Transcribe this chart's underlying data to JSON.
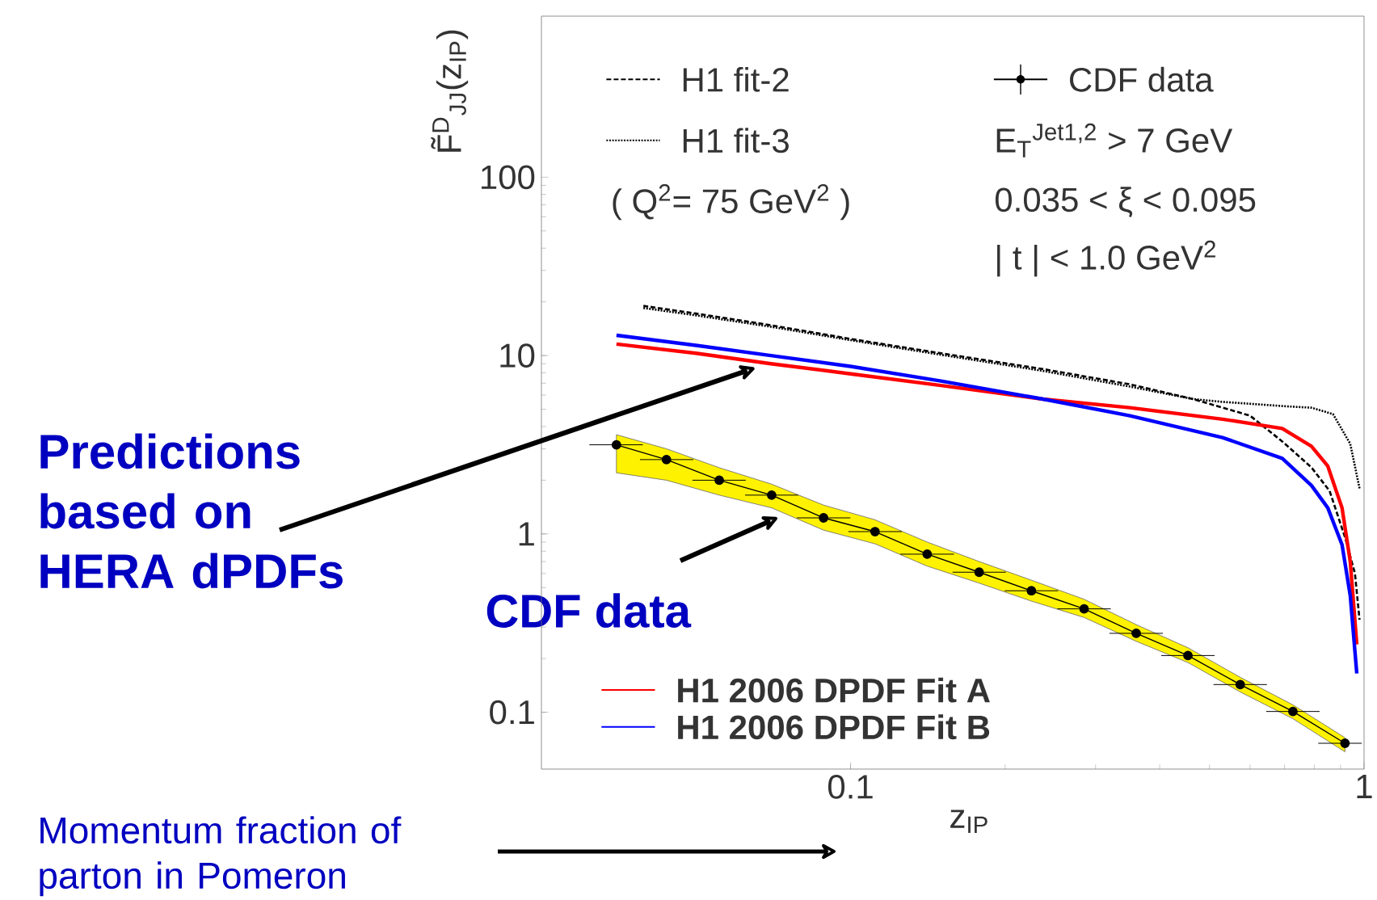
{
  "chart_data": {
    "type": "line",
    "log": "xy",
    "xlabel": "z$_{IP}$",
    "ylabel": "F̃$^{D}$$_{JJ}$(z$_{IP}$)",
    "xlim": [
      0.025,
      1
    ],
    "ylim": [
      0.048,
      800
    ],
    "xticks": [
      0.1,
      1
    ],
    "yticks": [
      0.1,
      1,
      10,
      100
    ],
    "legend": "left",
    "series": [
      {
        "name": "H1 fit-2",
        "color": "#000000",
        "line_style": "dashed",
        "x": [
          0.0395,
          0.05,
          0.07,
          0.1,
          0.15,
          0.237,
          0.35,
          0.465,
          0.6,
          0.693,
          0.79,
          0.857,
          0.92,
          0.96,
          0.98
        ],
        "values": [
          19,
          17.2,
          14.8,
          12.4,
          10.3,
          8.4,
          6.9,
          5.7,
          4.6,
          3.3,
          2.36,
          1.74,
          0.94,
          0.6,
          0.33
        ]
      },
      {
        "name": "H1 fit-3",
        "color": "#000000",
        "line_style": "dotted",
        "x": [
          0.0395,
          0.05,
          0.07,
          0.1,
          0.15,
          0.237,
          0.35,
          0.465,
          0.53,
          0.7,
          0.79,
          0.87,
          0.94,
          0.98
        ],
        "values": [
          18.5,
          16.8,
          14.5,
          12.2,
          10.1,
          8.2,
          6.7,
          5.7,
          5.5,
          5.2,
          5.1,
          4.7,
          3.2,
          1.8
        ]
      },
      {
        "name": "CDF data",
        "color": "#000000",
        "marker": "circle",
        "x": [
          0.035,
          0.0438,
          0.0555,
          0.0702,
          0.0886,
          0.1116,
          0.141,
          0.178,
          0.225,
          0.285,
          0.36,
          0.454,
          0.574,
          0.727,
          0.918
        ],
        "values": [
          3.16,
          2.61,
          2.0,
          1.65,
          1.23,
          1.03,
          0.77,
          0.61,
          0.48,
          0.38,
          0.277,
          0.208,
          0.143,
          0.101,
          0.067
        ],
        "upper": [
          3.6,
          3.0,
          2.35,
          1.9,
          1.45,
          1.2,
          0.9,
          0.7,
          0.55,
          0.43,
          0.31,
          0.23,
          0.157,
          0.11,
          0.072
        ],
        "lower": [
          2.2,
          2.0,
          1.65,
          1.4,
          1.05,
          0.88,
          0.66,
          0.53,
          0.42,
          0.34,
          0.25,
          0.19,
          0.13,
          0.092,
          0.06
        ],
        "xerrors": [
          [
            0.031,
            0.0394
          ],
          [
            0.0389,
            0.0494
          ],
          [
            0.0492,
            0.0625
          ],
          [
            0.0623,
            0.0791
          ],
          [
            0.0786,
            0.0999
          ],
          [
            0.099,
            0.1258
          ],
          [
            0.125,
            0.159
          ],
          [
            0.158,
            0.2006
          ],
          [
            0.1996,
            0.2536
          ],
          [
            0.2528,
            0.3212
          ],
          [
            0.3193,
            0.4057
          ],
          [
            0.4027,
            0.5117
          ],
          [
            0.5091,
            0.6469
          ],
          [
            0.6448,
            0.8193
          ],
          [
            0.8143,
            0.99
          ]
        ]
      },
      {
        "name": "H1 2006 DPDF Fit A",
        "color": "#ff0000",
        "x": [
          0.035,
          0.05,
          0.07,
          0.1,
          0.15,
          0.237,
          0.35,
          0.53,
          0.693,
          0.79,
          0.85,
          0.906,
          0.94,
          0.968
        ],
        "values": [
          11.6,
          10.3,
          9.0,
          7.9,
          6.8,
          5.7,
          5.1,
          4.4,
          3.9,
          3.1,
          2.4,
          1.4,
          0.7,
          0.24
        ]
      },
      {
        "name": "H1 2006 DPDF Fit B",
        "color": "#0000ff",
        "x": [
          0.035,
          0.05,
          0.07,
          0.1,
          0.15,
          0.237,
          0.35,
          0.53,
          0.693,
          0.79,
          0.85,
          0.906,
          0.94,
          0.968
        ],
        "values": [
          13,
          11.4,
          10.0,
          8.7,
          7.2,
          5.7,
          4.6,
          3.47,
          2.65,
          1.87,
          1.4,
          0.87,
          0.45,
          0.165
        ]
      }
    ],
    "annotations": [
      "( Q$^{2}$= 75 GeV$^{2}$ )",
      "E$_{T}$$^{Jet1,2}$ > 7 GeV",
      "0.035 < ξ < 0.095",
      "| t | < 1.0 GeV$^{2}$",
      {
        "text": "Predictions based on HERA dPDFs",
        "x": 0.065,
        "y": 8.5
      },
      {
        "text": "CDF data",
        "x": 0.072,
        "y": 1.23
      },
      "Momentum fraction of parton in Pomeron"
    ]
  }
}
